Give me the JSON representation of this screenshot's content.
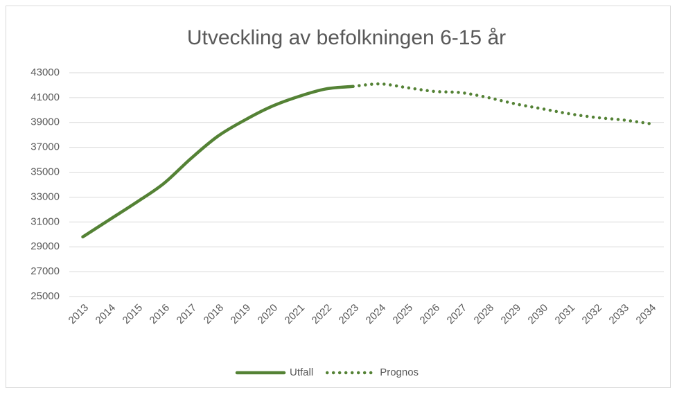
{
  "chart_data": {
    "type": "line",
    "title": "Utveckling av befolkningen 6-15 år",
    "categories": [
      "2013",
      "2014",
      "2015",
      "2016",
      "2017",
      "2018",
      "2019",
      "2020",
      "2021",
      "2022",
      "2023",
      "2024",
      "2025",
      "2026",
      "2027",
      "2028",
      "2029",
      "2030",
      "2031",
      "2032",
      "2033",
      "2034"
    ],
    "series": [
      {
        "name": "Utfall",
        "color": "#548235",
        "style": "solid",
        "values": [
          29800,
          31200,
          32600,
          34100,
          36100,
          37900,
          39200,
          40300,
          41100,
          41700,
          41900,
          null,
          null,
          null,
          null,
          null,
          null,
          null,
          null,
          null,
          null,
          null
        ]
      },
      {
        "name": "Prognos",
        "color": "#548235",
        "style": "dotted",
        "values": [
          null,
          null,
          null,
          null,
          null,
          null,
          null,
          null,
          null,
          null,
          41900,
          42100,
          41800,
          41500,
          41400,
          41000,
          40500,
          40100,
          39700,
          39400,
          39200,
          38900
        ]
      }
    ],
    "ylim": [
      25000,
      43000
    ],
    "yticks": [
      25000,
      27000,
      29000,
      31000,
      33000,
      35000,
      37000,
      39000,
      41000,
      43000
    ],
    "grid": true,
    "legend": "bottom"
  }
}
